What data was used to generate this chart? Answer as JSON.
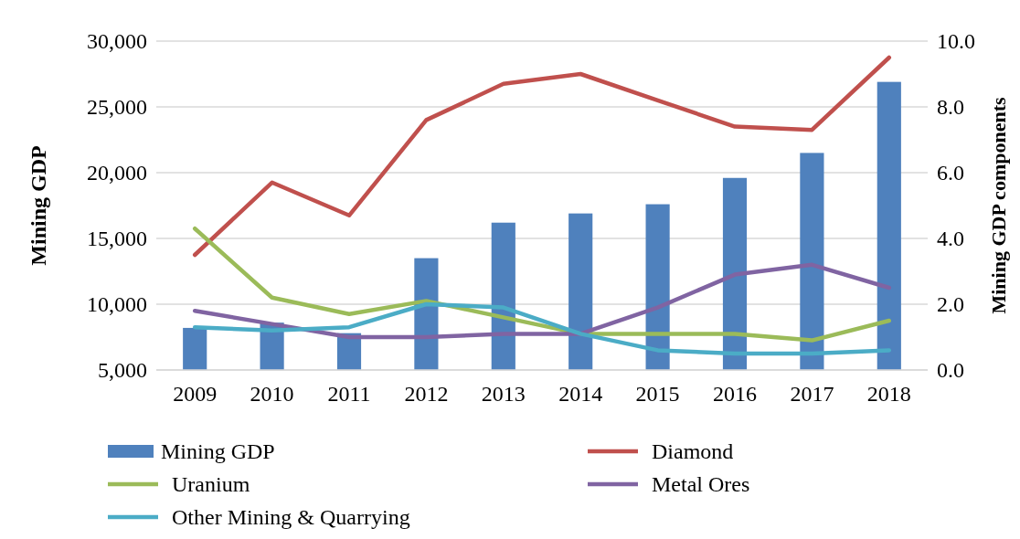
{
  "chart_data": {
    "type": "bar",
    "ylabel": "Mining GDP",
    "y2label": "Mining GDP components",
    "categories": [
      "2009",
      "2010",
      "2011",
      "2012",
      "2013",
      "2014",
      "2015",
      "2016",
      "2017",
      "2018"
    ],
    "series": [
      {
        "name": "Mining GDP",
        "color": "#4f81bd",
        "values": [
          8200,
          8600,
          7800,
          13500,
          16200,
          16900,
          17600,
          19600,
          21500,
          26900
        ]
      },
      {
        "name": "Diamond",
        "type": "line",
        "axis": "y2",
        "color": "#c0504d",
        "values": [
          3.5,
          5.7,
          4.7,
          7.6,
          8.7,
          9.0,
          8.2,
          7.4,
          7.3,
          9.5
        ]
      },
      {
        "name": "Uranium",
        "type": "line",
        "axis": "y2",
        "color": "#9bbb59",
        "values": [
          4.3,
          2.2,
          1.7,
          2.1,
          1.6,
          1.1,
          1.1,
          1.1,
          0.9,
          1.5
        ]
      },
      {
        "name": "Metal Ores",
        "type": "line",
        "axis": "y2",
        "color": "#8064a2",
        "values": [
          1.8,
          1.4,
          1.0,
          1.0,
          1.1,
          1.1,
          1.9,
          2.9,
          3.2,
          2.5
        ]
      },
      {
        "name": "Other Mining & Quarrying",
        "type": "line",
        "axis": "y2",
        "color": "#4bacc6",
        "values": [
          1.3,
          1.2,
          1.3,
          2.0,
          1.9,
          1.1,
          0.6,
          0.5,
          0.5,
          0.6
        ]
      }
    ],
    "ylim": [
      5000,
      30000
    ],
    "yticks": [
      {
        "value": 5000,
        "label": "5,000"
      },
      {
        "value": 10000,
        "label": "10,000"
      },
      {
        "value": 15000,
        "label": "15,000"
      },
      {
        "value": 20000,
        "label": "20,000"
      },
      {
        "value": 25000,
        "label": "25,000"
      },
      {
        "value": 30000,
        "label": "30,000"
      }
    ],
    "y2lim": [
      0,
      10
    ],
    "y2ticks": [
      {
        "value": 0,
        "label": "0.0"
      },
      {
        "value": 2,
        "label": "2.0"
      },
      {
        "value": 4,
        "label": "4.0"
      },
      {
        "value": 6,
        "label": "6.0"
      },
      {
        "value": 8,
        "label": "8.0"
      },
      {
        "value": 10,
        "label": "10.0"
      }
    ],
    "grid": "y",
    "legend": "bottom",
    "marker": "none",
    "line_style": "solid"
  }
}
